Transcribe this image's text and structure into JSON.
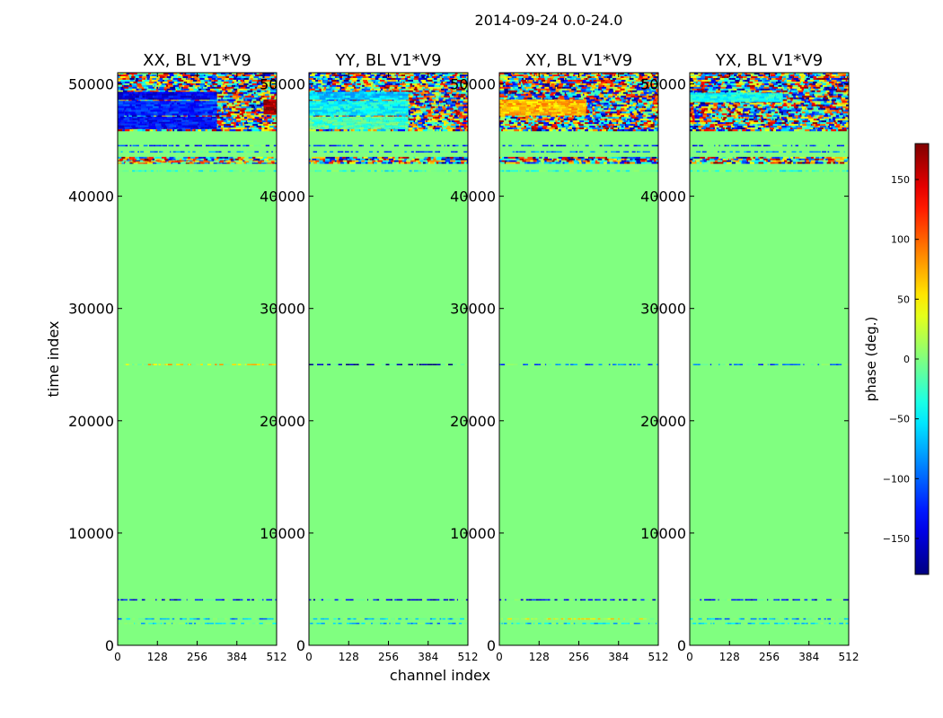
{
  "figure": {
    "suptitle": "2014-09-24 0.0-24.0"
  },
  "chart_data": {
    "type": "heatmap",
    "y_label": "time index",
    "x_label": "channel index",
    "xlim": [
      0,
      512
    ],
    "ylim": [
      0,
      51000
    ],
    "x_ticks": [
      0,
      128,
      256,
      384,
      512
    ],
    "y_ticks": [
      0,
      10000,
      20000,
      30000,
      40000,
      50000
    ],
    "panels": [
      {
        "title": "XX, BL V1*V9",
        "background_phase": 0,
        "lines": [
          {
            "y": 1950,
            "phase": -60
          },
          {
            "y": 2350,
            "phase": -80
          },
          {
            "y": 4050,
            "phase": -140
          },
          {
            "y": 25000,
            "phase": 60
          },
          {
            "y": 42250,
            "phase": -30
          },
          {
            "y": 43050,
            "phase": 100
          },
          {
            "y": 43950,
            "phase": -90
          },
          {
            "y": 44500,
            "phase": -120
          }
        ],
        "noisy_bands": [
          {
            "from": 42900,
            "to": 43500
          },
          {
            "from": 45800,
            "to": 51000
          }
        ],
        "coherent_blocks": [
          {
            "x0": 0,
            "x1": 320,
            "y0": 48600,
            "y1": 49300,
            "phase": -140
          },
          {
            "x0": 0,
            "x1": 320,
            "y0": 47200,
            "y1": 48500,
            "phase": -120
          },
          {
            "x0": 0,
            "x1": 320,
            "y0": 46000,
            "y1": 47100,
            "phase": -130
          },
          {
            "x0": 470,
            "x1": 512,
            "y0": 47300,
            "y1": 48600,
            "phase": 170
          }
        ]
      },
      {
        "title": "YY, BL V1*V9",
        "background_phase": 0,
        "lines": [
          {
            "y": 1950,
            "phase": -80
          },
          {
            "y": 2350,
            "phase": -60
          },
          {
            "y": 4050,
            "phase": -140
          },
          {
            "y": 25000,
            "phase": -170
          },
          {
            "y": 42250,
            "phase": -40
          },
          {
            "y": 43950,
            "phase": -100
          },
          {
            "y": 44500,
            "phase": -120
          }
        ],
        "noisy_bands": [
          {
            "from": 42900,
            "to": 43500
          },
          {
            "from": 45800,
            "to": 51000
          }
        ],
        "coherent_blocks": [
          {
            "x0": 0,
            "x1": 320,
            "y0": 48600,
            "y1": 49300,
            "phase": -60
          },
          {
            "x0": 0,
            "x1": 320,
            "y0": 47200,
            "y1": 48500,
            "phase": -45
          },
          {
            "x0": 0,
            "x1": 320,
            "y0": 46000,
            "y1": 47100,
            "phase": -20
          }
        ]
      },
      {
        "title": "XY, BL V1*V9",
        "background_phase": 0,
        "lines": [
          {
            "y": 1950,
            "phase": -60
          },
          {
            "y": 2350,
            "phase": 40
          },
          {
            "y": 4050,
            "phase": -140
          },
          {
            "y": 25000,
            "phase": -100
          },
          {
            "y": 42250,
            "phase": -30
          },
          {
            "y": 43950,
            "phase": -90
          },
          {
            "y": 44500,
            "phase": -120
          }
        ],
        "noisy_bands": [
          {
            "from": 42900,
            "to": 43500
          },
          {
            "from": 45800,
            "to": 51000
          }
        ],
        "coherent_blocks": [
          {
            "x0": 0,
            "x1": 280,
            "y0": 47200,
            "y1": 48600,
            "phase": 70
          }
        ]
      },
      {
        "title": "YX, BL V1*V9",
        "background_phase": 0,
        "lines": [
          {
            "y": 1950,
            "phase": -60
          },
          {
            "y": 2350,
            "phase": -80
          },
          {
            "y": 4050,
            "phase": -140
          },
          {
            "y": 25000,
            "phase": -100
          },
          {
            "y": 42250,
            "phase": -30
          },
          {
            "y": 43950,
            "phase": -90
          },
          {
            "y": 44500,
            "phase": -120
          }
        ],
        "noisy_bands": [
          {
            "from": 42900,
            "to": 43500
          },
          {
            "from": 45800,
            "to": 51000
          }
        ],
        "coherent_blocks": [
          {
            "x0": 0,
            "x1": 300,
            "y0": 48400,
            "y1": 49200,
            "phase": -40
          }
        ]
      }
    ],
    "colorbar": {
      "label": "phase (deg.)",
      "range": [
        -180,
        180
      ],
      "ticks": [
        -150,
        -100,
        -50,
        0,
        50,
        100,
        150
      ],
      "colormap": "jet"
    }
  }
}
